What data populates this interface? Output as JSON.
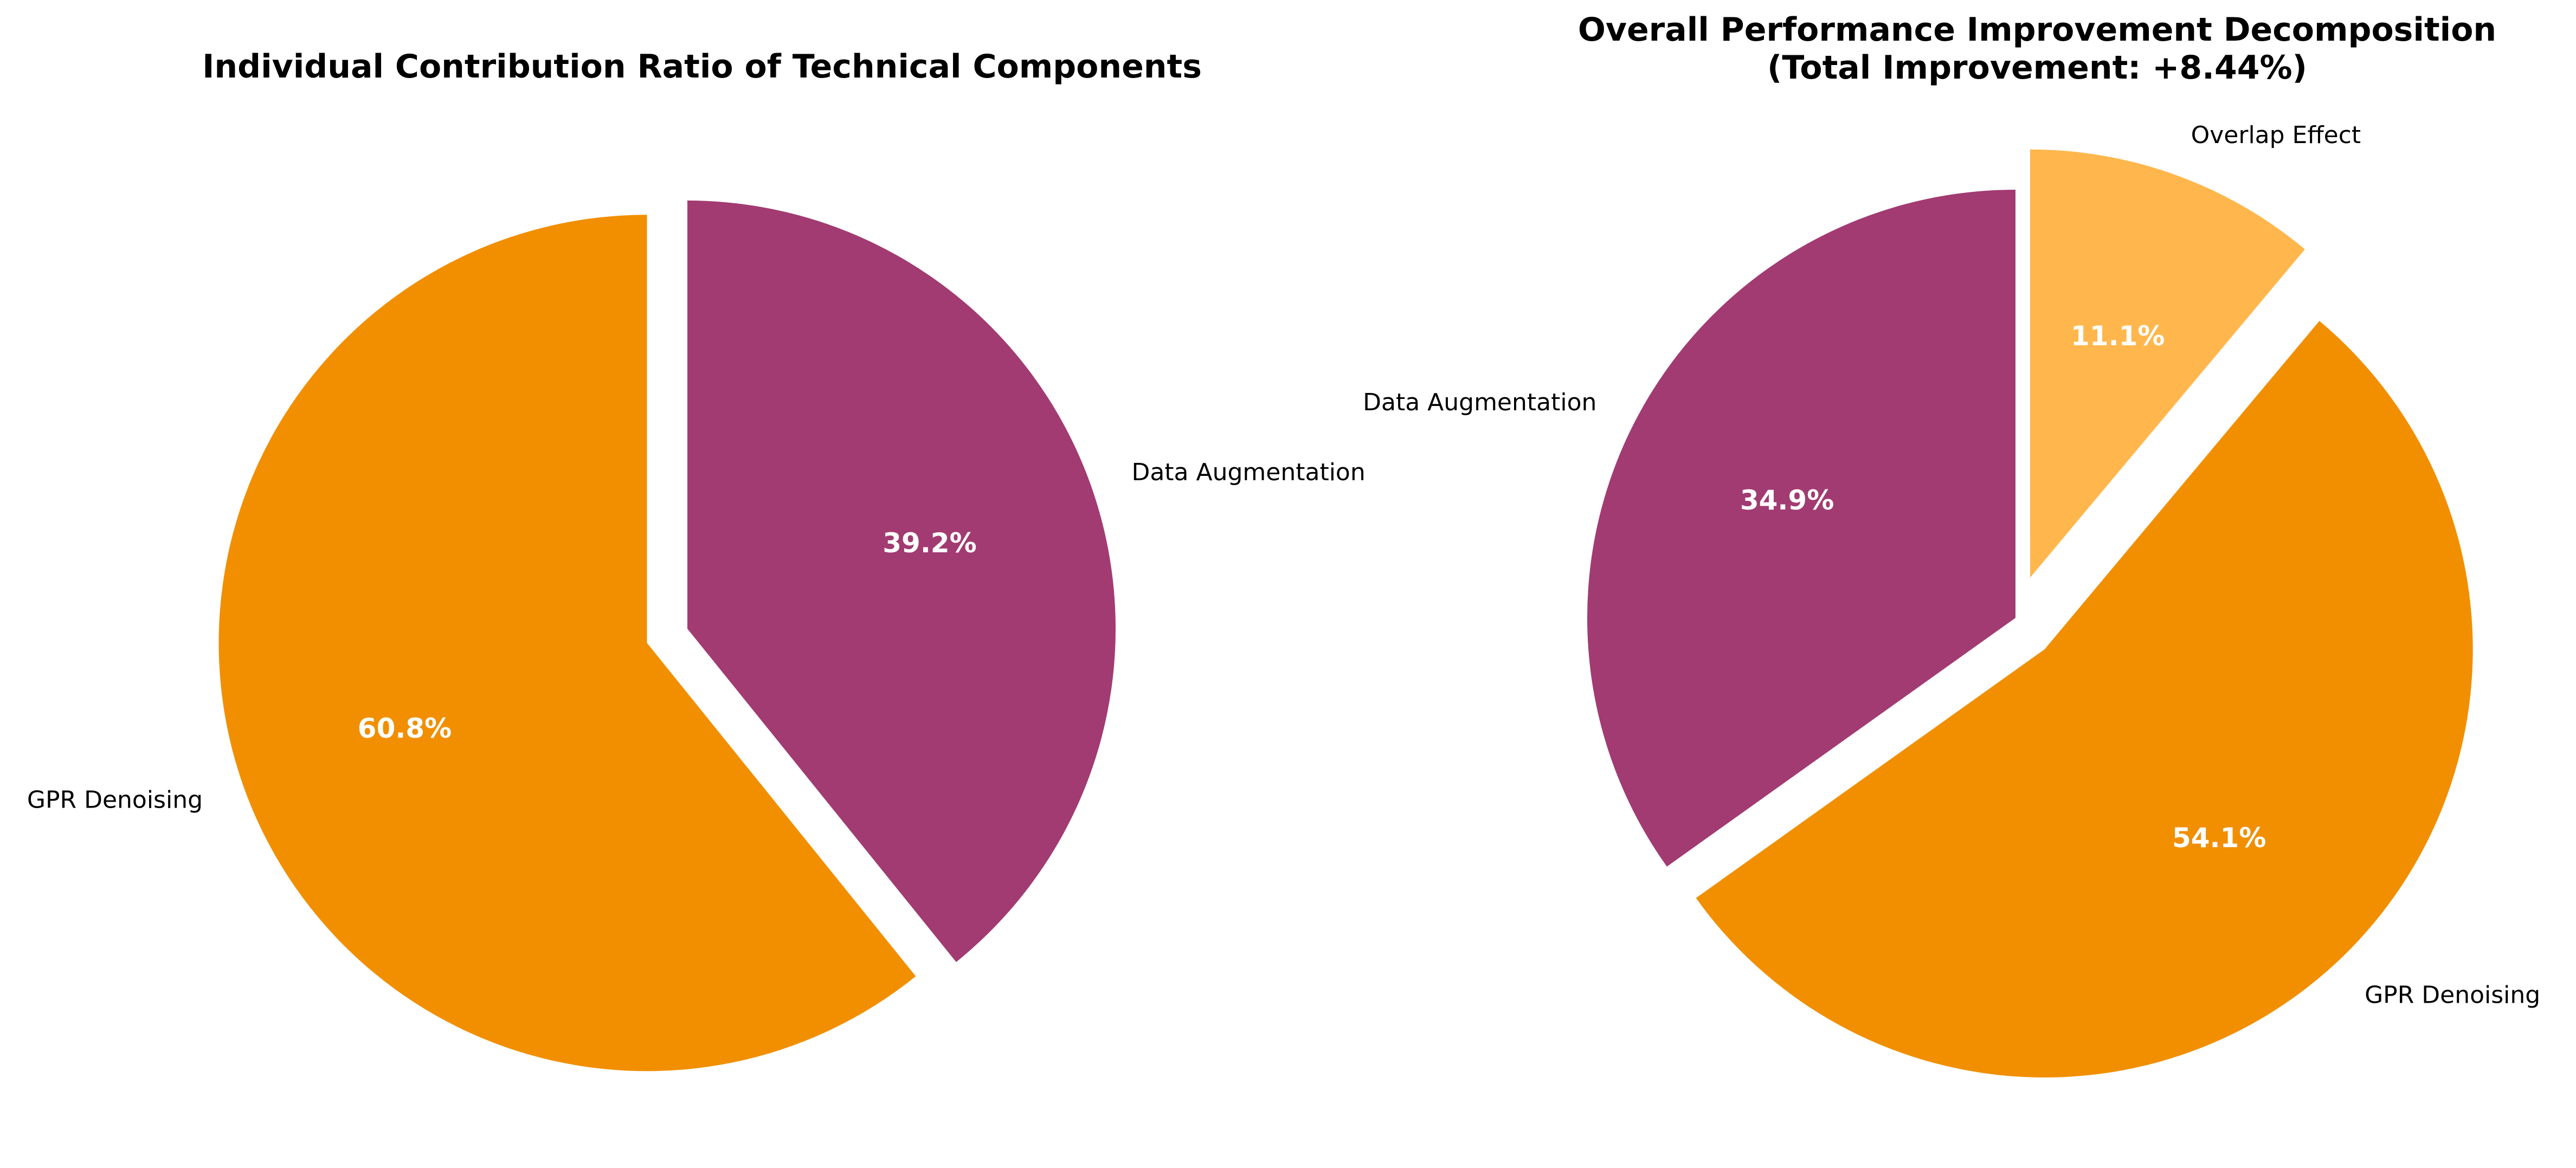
{
  "chart_data": [
    {
      "type": "pie",
      "title": "Individual Contribution Ratio of Technical Components",
      "subtitle": "",
      "start_angle_deg": 90,
      "direction": "clockwise",
      "slices": [
        {
          "label": "Data Augmentation",
          "value": 39.2,
          "pct_label": "39.2%",
          "color": "#A23B72",
          "exploded": false
        },
        {
          "label": "GPR Denoising",
          "value": 60.8,
          "pct_label": "60.8%",
          "color": "#F18F01",
          "exploded": true
        }
      ]
    },
    {
      "type": "pie",
      "title": "Overall Performance Improvement Decomposition",
      "subtitle": "(Total Improvement: +8.44%)",
      "start_angle_deg": 90,
      "direction": "clockwise",
      "slices": [
        {
          "label": "Overlap Effect",
          "value": 11.1,
          "pct_label": "11.1%",
          "color": "#FFB74D",
          "exploded": true
        },
        {
          "label": "GPR Denoising",
          "value": 54.1,
          "pct_label": "54.1%",
          "color": "#F18F01",
          "exploded": true
        },
        {
          "label": "Data Augmentation",
          "value": 34.9,
          "pct_label": "34.9%",
          "color": "#A23B72",
          "exploded": false
        }
      ]
    }
  ]
}
